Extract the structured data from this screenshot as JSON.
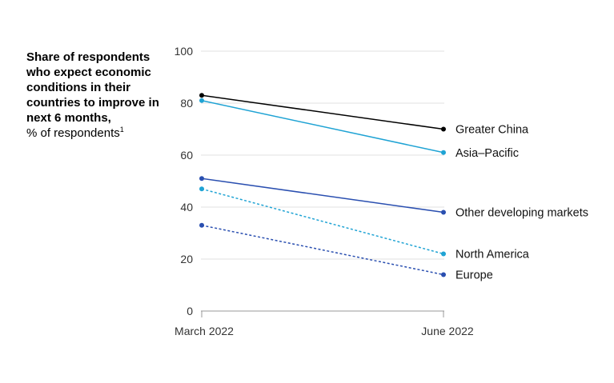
{
  "chart_data": {
    "type": "line",
    "title": "Share of respondents who expect economic conditions in their countries to improve in next 6 months,",
    "subtitle": "% of respondents",
    "subtitle_footnote": "1",
    "categories": [
      "March 2022",
      "June 2022"
    ],
    "ylim": [
      0,
      100
    ],
    "yticks": [
      "0",
      "20",
      "40",
      "60",
      "80",
      "100"
    ],
    "grid": true,
    "series": [
      {
        "name": "Greater China",
        "values": [
          83,
          70
        ],
        "color": "#000000",
        "dashed": false
      },
      {
        "name": "Asia–Pacific",
        "values": [
          81,
          61
        ],
        "color": "#1fa3d4",
        "dashed": false
      },
      {
        "name": "Other developing markets",
        "values": [
          51,
          38
        ],
        "color": "#2a4fb0",
        "dashed": false
      },
      {
        "name": "North America",
        "values": [
          47,
          22
        ],
        "color": "#1fa3d4",
        "dashed": true
      },
      {
        "name": "Europe",
        "values": [
          33,
          14
        ],
        "color": "#2a4fb0",
        "dashed": true
      }
    ]
  }
}
